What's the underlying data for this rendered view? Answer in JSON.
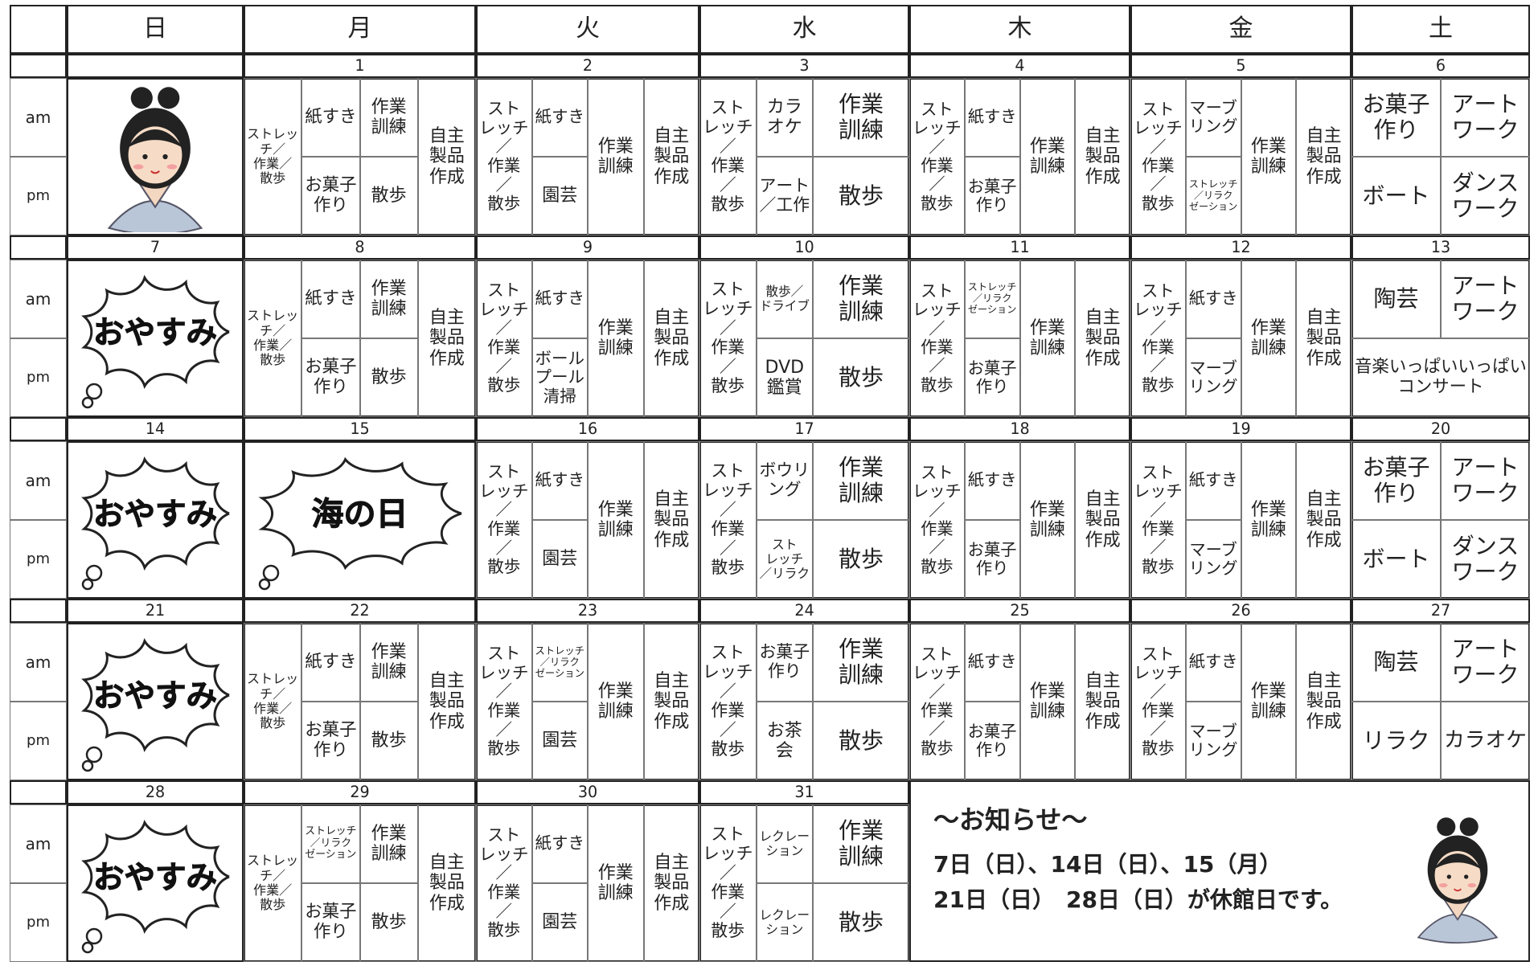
{
  "header": {
    "days": [
      "日",
      "月",
      "火",
      "水",
      "木",
      "金",
      "土"
    ]
  },
  "time_labels": [
    "am",
    "pm"
  ],
  "weeks": [
    {
      "days": [
        {
          "date": null
        },
        {
          "date": "1",
          "cols": [
            {
              "full": "ストレッ\nチ／\n作業／\n散歩"
            },
            {
              "am": "紙すき",
              "pm": "お菓子\n作り"
            },
            {
              "am": "作業\n訓練",
              "pm": "散歩"
            },
            {
              "full": "自主\n製品\n作成"
            }
          ]
        },
        {
          "date": "2",
          "cols": [
            {
              "full": "スト\nレッチ\n／\n作業\n／\n散歩"
            },
            {
              "am": "紙すき",
              "pm": "園芸"
            },
            {
              "full": "作業\n訓練"
            },
            {
              "full": "自主\n製品\n作成"
            }
          ]
        },
        {
          "date": "3",
          "cols": [
            {
              "full": "スト\nレッチ\n／\n作業\n／\n散歩"
            },
            {
              "am": "カラ\nオケ",
              "pm": "アート\n／工作"
            },
            {
              "am": "作業\n訓練",
              "pm": "散歩"
            }
          ]
        },
        {
          "date": "4",
          "cols": [
            {
              "full": "スト\nレッチ\n／\n作業\n／\n散歩"
            },
            {
              "am": "紙すき",
              "pm": "お菓子\n作り"
            },
            {
              "full": "作業\n訓練"
            },
            {
              "full": "自主\n製品\n作成"
            }
          ]
        },
        {
          "date": "5",
          "cols": [
            {
              "full": "スト\nレッチ\n／\n作業\n／\n散歩"
            },
            {
              "am": "マーブ\nリング",
              "pm": "ストレッチ\n／リラク\nゼーション"
            },
            {
              "full": "作業\n訓練"
            },
            {
              "full": "自主\n製品\n作成"
            }
          ]
        },
        {
          "date": "6",
          "rows": {
            "am": [
              "お菓子\n作り",
              "アート\nワーク"
            ],
            "pm": [
              "ボート",
              "ダンス\nワーク"
            ]
          }
        }
      ]
    },
    {
      "days": [
        {
          "date": "7",
          "holiday": "おやすみ"
        },
        {
          "date": "8",
          "cols": [
            {
              "full": "ストレッ\nチ／\n作業／\n散歩"
            },
            {
              "am": "紙すき",
              "pm": "お菓子\n作り"
            },
            {
              "am": "作業\n訓練",
              "pm": "散歩"
            },
            {
              "full": "自主\n製品\n作成"
            }
          ]
        },
        {
          "date": "9",
          "cols": [
            {
              "full": "スト\nレッチ\n／\n作業\n／\n散歩"
            },
            {
              "am": "紙すき",
              "pm": "ボール\nプール\n清掃"
            },
            {
              "full": "作業\n訓練"
            },
            {
              "full": "自主\n製品\n作成"
            }
          ]
        },
        {
          "date": "10",
          "cols": [
            {
              "full": "スト\nレッチ\n／\n作業\n／\n散歩"
            },
            {
              "am": "散歩／\nドライブ",
              "pm": "DVD\n鑑賞"
            },
            {
              "am": "作業\n訓練",
              "pm": "散歩"
            }
          ]
        },
        {
          "date": "11",
          "cols": [
            {
              "full": "スト\nレッチ\n／\n作業\n／\n散歩"
            },
            {
              "am": "ストレッチ\n／リラク\nゼーション",
              "pm": "お菓子\n作り"
            },
            {
              "full": "作業\n訓練"
            },
            {
              "full": "自主\n製品\n作成"
            }
          ]
        },
        {
          "date": "12",
          "cols": [
            {
              "full": "スト\nレッチ\n／\n作業\n／\n散歩"
            },
            {
              "am": "紙すき",
              "pm": "マーブ\nリング"
            },
            {
              "full": "作業\n訓練"
            },
            {
              "full": "自主\n製品\n作成"
            }
          ]
        },
        {
          "date": "13",
          "rows": {
            "am": [
              "陶芸",
              "アート\nワーク"
            ],
            "pm": [
              "音楽いっぱいいっぱい\nコンサート"
            ]
          }
        }
      ]
    },
    {
      "days": [
        {
          "date": "14",
          "holiday": "おやすみ"
        },
        {
          "date": "15",
          "holiday": "海の日"
        },
        {
          "date": "16",
          "cols": [
            {
              "full": "スト\nレッチ\n／\n作業\n／\n散歩"
            },
            {
              "am": "紙すき",
              "pm": "園芸"
            },
            {
              "full": "作業\n訓練"
            },
            {
              "full": "自主\n製品\n作成"
            }
          ]
        },
        {
          "date": "17",
          "cols": [
            {
              "full": "スト\nレッチ\n／\n作業\n／\n散歩"
            },
            {
              "am": "ボウリ\nング",
              "pm": "スト\nレッチ\n／リラク"
            },
            {
              "am": "作業\n訓練",
              "pm": "散歩"
            }
          ]
        },
        {
          "date": "18",
          "cols": [
            {
              "full": "スト\nレッチ\n／\n作業\n／\n散歩"
            },
            {
              "am": "紙すき",
              "pm": "お菓子\n作り"
            },
            {
              "full": "作業\n訓練"
            },
            {
              "full": "自主\n製品\n作成"
            }
          ]
        },
        {
          "date": "19",
          "cols": [
            {
              "full": "スト\nレッチ\n／\n作業\n／\n散歩"
            },
            {
              "am": "紙すき",
              "pm": "マーブ\nリング"
            },
            {
              "full": "作業\n訓練"
            },
            {
              "full": "自主\n製品\n作成"
            }
          ]
        },
        {
          "date": "20",
          "rows": {
            "am": [
              "お菓子\n作り",
              "アート\nワーク"
            ],
            "pm": [
              "ボート",
              "ダンス\nワーク"
            ]
          }
        }
      ]
    },
    {
      "days": [
        {
          "date": "21",
          "holiday": "おやすみ"
        },
        {
          "date": "22",
          "cols": [
            {
              "full": "ストレッ\nチ／\n作業／\n散歩"
            },
            {
              "am": "紙すき",
              "pm": "お菓子\n作り"
            },
            {
              "am": "作業\n訓練",
              "pm": "散歩"
            },
            {
              "full": "自主\n製品\n作成"
            }
          ]
        },
        {
          "date": "23",
          "cols": [
            {
              "full": "スト\nレッチ\n／\n作業\n／\n散歩"
            },
            {
              "am": "ストレッチ\n／リラク\nゼーション",
              "pm": "園芸"
            },
            {
              "full": "作業\n訓練"
            },
            {
              "full": "自主\n製品\n作成"
            }
          ]
        },
        {
          "date": "24",
          "cols": [
            {
              "full": "スト\nレッチ\n／\n作業\n／\n散歩"
            },
            {
              "am": "お菓子\n作り",
              "pm": "お茶\n会"
            },
            {
              "am": "作業\n訓練",
              "pm": "散歩"
            }
          ]
        },
        {
          "date": "25",
          "cols": [
            {
              "full": "スト\nレッチ\n／\n作業\n／\n散歩"
            },
            {
              "am": "紙すき",
              "pm": "お菓子\n作り"
            },
            {
              "full": "作業\n訓練"
            },
            {
              "full": "自主\n製品\n作成"
            }
          ]
        },
        {
          "date": "26",
          "cols": [
            {
              "full": "スト\nレッチ\n／\n作業\n／\n散歩"
            },
            {
              "am": "紙すき",
              "pm": "マーブ\nリング"
            },
            {
              "full": "作業\n訓練"
            },
            {
              "full": "自主\n製品\n作成"
            }
          ]
        },
        {
          "date": "27",
          "rows": {
            "am": [
              "陶芸",
              "アート\nワーク"
            ],
            "pm": [
              "リラク",
              "カラオケ"
            ]
          }
        }
      ]
    },
    {
      "days": [
        {
          "date": "28",
          "holiday": "おやすみ"
        },
        {
          "date": "29",
          "cols": [
            {
              "full": "ストレッ\nチ／\n作業／\n散歩"
            },
            {
              "am": "ストレッチ\n／リラク\nゼーション",
              "pm": "お菓子\n作り"
            },
            {
              "am": "作業\n訓練",
              "pm": "散歩"
            },
            {
              "full": "自主\n製品\n作成"
            }
          ]
        },
        {
          "date": "30",
          "cols": [
            {
              "full": "スト\nレッチ\n／\n作業\n／\n散歩"
            },
            {
              "am": "紙すき",
              "pm": "園芸"
            },
            {
              "full": "作業\n訓練"
            },
            {
              "full": "自主\n製品\n作成"
            }
          ]
        },
        {
          "date": "31",
          "cols": [
            {
              "full": "スト\nレッチ\n／\n作業\n／\n散歩"
            },
            {
              "am": "レクレー\nション",
              "pm": "レクレー\nション"
            },
            {
              "am": "作業\n訓練",
              "pm": "散歩"
            }
          ]
        }
      ]
    }
  ],
  "notice": {
    "title": "～お知らせ～",
    "lines": [
      "7日（日）、14日（日）、15（月）",
      "21日（日）　28日（日）が休館日です。"
    ]
  }
}
